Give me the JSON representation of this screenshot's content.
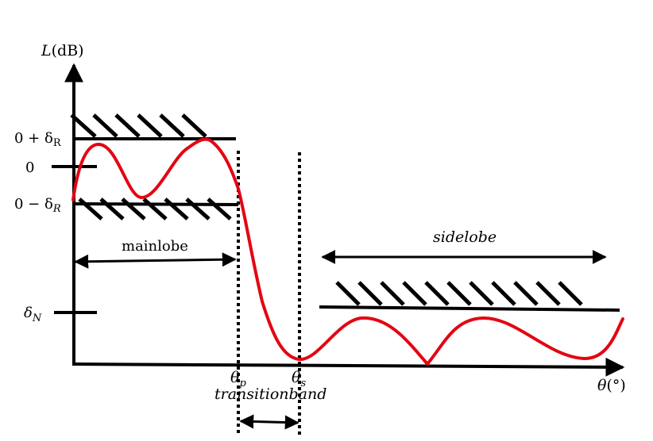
{
  "y_axis": {
    "label_italic": "L",
    "label_unit": "(dB)"
  },
  "x_axis": {
    "label_italic": "θ",
    "label_unit": "(°)"
  },
  "levels": {
    "upper": {
      "prefix": "0 + δ",
      "sub": "R"
    },
    "zero": {
      "text": "0"
    },
    "lower": {
      "prefix": "0 − δ",
      "sub": "R"
    },
    "stop": {
      "prefix": "δ",
      "sub": "N"
    }
  },
  "markers": {
    "passband_edge": {
      "base": "θ",
      "sub": "p"
    },
    "stopband_edge": {
      "base": "θ",
      "sub": "s"
    }
  },
  "regions": {
    "mainlobe": "mainlobe",
    "sidelobe": "sidelobe",
    "transitionband": "transitionband"
  },
  "colors": {
    "response_curve": "#e30613",
    "ink": "#000000"
  }
}
